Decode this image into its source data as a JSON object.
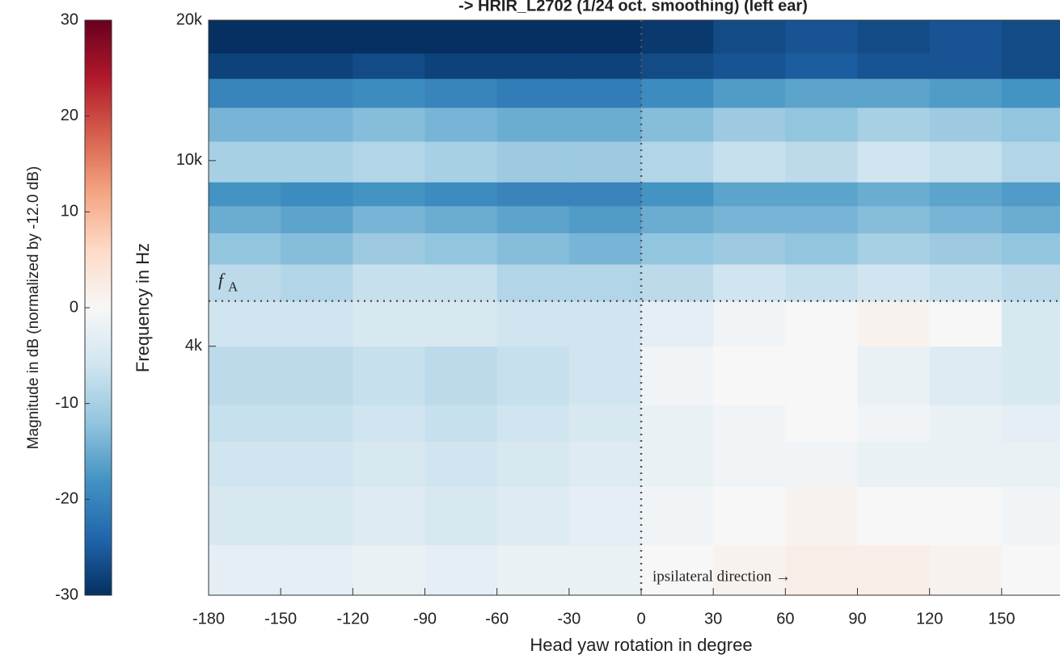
{
  "chart_data": {
    "type": "heatmap",
    "title": "->   HRIR_L2702   (1/24 oct. smoothing)   (left ear)",
    "x_label": "Head yaw rotation in degree",
    "y_label": "Frequency in Hz",
    "colorbar_label": "Magnitude in dB   (normalized by -12.0 dB)",
    "xlim": [
      -180,
      180
    ],
    "xticks": [
      -180,
      -150,
      -120,
      -90,
      -60,
      -30,
      0,
      30,
      60,
      90,
      120,
      150
    ],
    "ylim": [
      1170,
      20000
    ],
    "log_y": true,
    "yticks": [
      {
        "value": 4000,
        "label": "4k"
      },
      {
        "value": 10000,
        "label": "10k"
      },
      {
        "value": 20000,
        "label": "20k"
      }
    ],
    "clim": [
      -30,
      30
    ],
    "cticks": [
      30,
      20,
      10,
      0,
      -10,
      -20,
      -30
    ],
    "colormap": [
      "#053061",
      "#2166ac",
      "#4393c3",
      "#92c5de",
      "#d1e5f0",
      "#f7f7f7",
      "#fddbc7",
      "#f4a582",
      "#d6604d",
      "#b2182b",
      "#67001f"
    ],
    "xbins": [
      -180,
      -150,
      -120,
      -90,
      -60,
      -30,
      0,
      30,
      60,
      90,
      120,
      150,
      180
    ],
    "ybins": [
      1170,
      1500,
      2000,
      2500,
      3000,
      4000,
      5000,
      6000,
      7000,
      8000,
      9000,
      11000,
      13000,
      15000,
      17000,
      20000
    ],
    "z": [
      [
        -3,
        -3,
        -2,
        -3,
        -2,
        -2,
        0,
        1,
        2,
        2,
        1,
        0
      ],
      [
        -5,
        -5,
        -4,
        -5,
        -4,
        -3,
        -1,
        0,
        1,
        0,
        0,
        -1
      ],
      [
        -6,
        -6,
        -5,
        -6,
        -5,
        -4,
        -2,
        -1,
        -1,
        -2,
        -2,
        -2
      ],
      [
        -7,
        -7,
        -6,
        -7,
        -6,
        -5,
        -2,
        -1,
        0,
        -1,
        -2,
        -3
      ],
      [
        -8,
        -8,
        -7,
        -8,
        -7,
        -6,
        -1,
        0,
        0,
        -2,
        -4,
        -5
      ],
      [
        -6,
        -6,
        -5,
        -5,
        -6,
        -6,
        -3,
        -1,
        0,
        1,
        0,
        -5
      ],
      [
        -8,
        -9,
        -7,
        -7,
        -9,
        -9,
        -8,
        -6,
        -7,
        -6,
        -7,
        -8
      ],
      [
        -12,
        -13,
        -11,
        -12,
        -13,
        -14,
        -12,
        -11,
        -12,
        -10,
        -11,
        -12
      ],
      [
        -15,
        -16,
        -14,
        -15,
        -16,
        -17,
        -15,
        -14,
        -14,
        -13,
        -14,
        -15
      ],
      [
        -18,
        -19,
        -18,
        -19,
        -20,
        -20,
        -18,
        -16,
        -16,
        -15,
        -16,
        -17
      ],
      [
        -10,
        -10,
        -9,
        -10,
        -11,
        -11,
        -9,
        -7,
        -8,
        -6,
        -7,
        -9
      ],
      [
        -14,
        -14,
        -13,
        -14,
        -15,
        -15,
        -13,
        -11,
        -12,
        -10,
        -11,
        -12
      ],
      [
        -20,
        -20,
        -19,
        -20,
        -21,
        -21,
        -19,
        -17,
        -16,
        -16,
        -17,
        -18
      ],
      [
        -28,
        -28,
        -27,
        -28,
        -28,
        -28,
        -27,
        -26,
        -25,
        -26,
        -26,
        -27
      ],
      [
        -30,
        -30,
        -30,
        -30,
        -30,
        -30,
        -29,
        -27,
        -26,
        -27,
        -26,
        -27
      ]
    ],
    "hline": 5000,
    "hline_label": "f",
    "hline_label_sub": "A",
    "vline": 0,
    "vline_label": "ipsilateral direction →"
  }
}
